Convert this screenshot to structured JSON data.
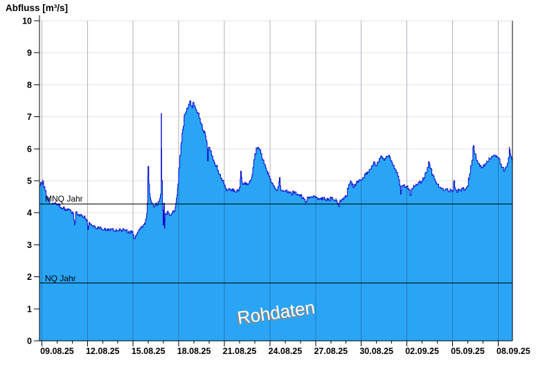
{
  "title": "Abfluss [m³/s]",
  "watermark": "Rohdaten",
  "reference_lines": [
    {
      "label": "MNQ Jahr",
      "value": 4.27
    },
    {
      "label": "NQ Jahr",
      "value": 1.81
    }
  ],
  "chart_data": {
    "type": "area",
    "title": "Abfluss [m³/s]",
    "ylabel": "Abfluss [m³/s]",
    "unit": "m³/s",
    "ylim": [
      0,
      10
    ],
    "y_ticks": [
      0,
      1,
      2,
      3,
      4,
      5,
      6,
      7,
      8,
      9,
      10
    ],
    "x_tick_labels": [
      "09.08.25",
      "12.08.25",
      "15.08.25",
      "18.08.25",
      "21.08.25",
      "24.08.25",
      "27.08.25",
      "30.08.25",
      "02.09.25",
      "05.09.25",
      "08.09.25"
    ],
    "x_tick_days": [
      0,
      3,
      6,
      9,
      12,
      15,
      18,
      21,
      24,
      27,
      30
    ],
    "xlim_days": [
      -0.16,
      30.93
    ],
    "grid": true,
    "legend": "none",
    "annotations": [
      "Rohdaten",
      "MNQ Jahr",
      "NQ Jahr"
    ],
    "reference_lines": [
      {
        "label": "MNQ Jahr",
        "value": 4.27
      },
      {
        "label": "NQ Jahr",
        "value": 1.81
      }
    ],
    "noise_amplitude": 0.06,
    "series": [
      {
        "name": "Abfluss Rohdaten",
        "points_day_value": [
          [
            -0.16,
            4.85
          ],
          [
            -0.08,
            4.95
          ],
          [
            0.0,
            4.9
          ],
          [
            0.06,
            5.02
          ],
          [
            0.12,
            4.8
          ],
          [
            0.2,
            4.7
          ],
          [
            0.28,
            4.5
          ],
          [
            0.36,
            4.42
          ],
          [
            0.5,
            4.35
          ],
          [
            0.7,
            4.3
          ],
          [
            0.9,
            4.28
          ],
          [
            1.1,
            4.22
          ],
          [
            1.3,
            4.15
          ],
          [
            1.5,
            4.12
          ],
          [
            1.7,
            4.08
          ],
          [
            1.9,
            4.05
          ],
          [
            2.05,
            3.98
          ],
          [
            2.15,
            3.62
          ],
          [
            2.22,
            4.0
          ],
          [
            2.4,
            3.95
          ],
          [
            2.6,
            3.92
          ],
          [
            2.8,
            3.9
          ],
          [
            2.95,
            3.78
          ],
          [
            3.02,
            3.48
          ],
          [
            3.1,
            3.7
          ],
          [
            3.25,
            3.62
          ],
          [
            3.45,
            3.58
          ],
          [
            3.65,
            3.52
          ],
          [
            3.9,
            3.5
          ],
          [
            4.1,
            3.48
          ],
          [
            4.3,
            3.45
          ],
          [
            4.5,
            3.5
          ],
          [
            4.7,
            3.46
          ],
          [
            4.9,
            3.44
          ],
          [
            5.1,
            3.5
          ],
          [
            5.3,
            3.46
          ],
          [
            5.5,
            3.44
          ],
          [
            5.7,
            3.42
          ],
          [
            5.9,
            3.38
          ],
          [
            6.05,
            3.22
          ],
          [
            6.15,
            3.28
          ],
          [
            6.3,
            3.4
          ],
          [
            6.45,
            3.5
          ],
          [
            6.6,
            3.55
          ],
          [
            6.75,
            3.65
          ],
          [
            6.87,
            3.85
          ],
          [
            6.93,
            4.3
          ],
          [
            6.98,
            5.45
          ],
          [
            7.03,
            5.0
          ],
          [
            7.08,
            4.6
          ],
          [
            7.15,
            4.4
          ],
          [
            7.25,
            4.3
          ],
          [
            7.35,
            4.18
          ],
          [
            7.45,
            4.28
          ],
          [
            7.55,
            4.22
          ],
          [
            7.65,
            4.35
          ],
          [
            7.75,
            4.45
          ],
          [
            7.82,
            4.6
          ],
          [
            7.85,
            7.1
          ],
          [
            7.88,
            5.0
          ],
          [
            7.93,
            4.3
          ],
          [
            7.97,
            3.62
          ],
          [
            8.02,
            4.3
          ],
          [
            8.06,
            3.52
          ],
          [
            8.12,
            3.98
          ],
          [
            8.2,
            3.95
          ],
          [
            8.3,
            4.05
          ],
          [
            8.4,
            3.92
          ],
          [
            8.5,
            3.95
          ],
          [
            8.6,
            4.0
          ],
          [
            8.7,
            4.05
          ],
          [
            8.8,
            4.3
          ],
          [
            8.88,
            4.55
          ],
          [
            8.94,
            4.9
          ],
          [
            9.0,
            5.4
          ],
          [
            9.08,
            5.8
          ],
          [
            9.16,
            6.2
          ],
          [
            9.25,
            6.6
          ],
          [
            9.35,
            7.0
          ],
          [
            9.45,
            7.15
          ],
          [
            9.55,
            7.25
          ],
          [
            9.65,
            7.4
          ],
          [
            9.72,
            7.5
          ],
          [
            9.8,
            7.35
          ],
          [
            9.87,
            7.28
          ],
          [
            9.93,
            7.45
          ],
          [
            10.0,
            7.35
          ],
          [
            10.08,
            7.28
          ],
          [
            10.16,
            7.2
          ],
          [
            10.25,
            7.1
          ],
          [
            10.35,
            6.95
          ],
          [
            10.45,
            6.8
          ],
          [
            10.55,
            6.65
          ],
          [
            10.65,
            6.55
          ],
          [
            10.75,
            6.4
          ],
          [
            10.85,
            6.2
          ],
          [
            10.9,
            5.62
          ],
          [
            10.96,
            6.05
          ],
          [
            11.05,
            5.95
          ],
          [
            11.15,
            5.82
          ],
          [
            11.25,
            5.65
          ],
          [
            11.35,
            5.55
          ],
          [
            11.45,
            5.45
          ],
          [
            11.55,
            5.32
          ],
          [
            11.65,
            5.2
          ],
          [
            11.75,
            5.1
          ],
          [
            11.85,
            5.02
          ],
          [
            11.95,
            4.92
          ],
          [
            12.05,
            4.82
          ],
          [
            12.15,
            4.72
          ],
          [
            12.3,
            4.75
          ],
          [
            12.45,
            4.68
          ],
          [
            12.6,
            4.72
          ],
          [
            12.75,
            4.65
          ],
          [
            12.9,
            4.68
          ],
          [
            13.0,
            4.8
          ],
          [
            13.07,
            5.3
          ],
          [
            13.15,
            4.95
          ],
          [
            13.25,
            4.92
          ],
          [
            13.4,
            4.88
          ],
          [
            13.55,
            4.9
          ],
          [
            13.7,
            5.0
          ],
          [
            13.82,
            5.2
          ],
          [
            13.92,
            5.55
          ],
          [
            14.0,
            5.85
          ],
          [
            14.1,
            6.0
          ],
          [
            14.2,
            6.05
          ],
          [
            14.3,
            6.0
          ],
          [
            14.4,
            5.85
          ],
          [
            14.5,
            5.65
          ],
          [
            14.6,
            5.55
          ],
          [
            14.72,
            5.4
          ],
          [
            14.85,
            5.25
          ],
          [
            14.95,
            5.15
          ],
          [
            15.05,
            5.0
          ],
          [
            15.2,
            4.88
          ],
          [
            15.35,
            4.78
          ],
          [
            15.5,
            4.72
          ],
          [
            15.62,
            5.1
          ],
          [
            15.7,
            4.72
          ],
          [
            15.85,
            4.7
          ],
          [
            16.0,
            4.68
          ],
          [
            16.2,
            4.62
          ],
          [
            16.4,
            4.6
          ],
          [
            16.6,
            4.65
          ],
          [
            16.8,
            4.58
          ],
          [
            17.0,
            4.52
          ],
          [
            17.2,
            4.45
          ],
          [
            17.32,
            4.32
          ],
          [
            17.45,
            4.5
          ],
          [
            17.6,
            4.45
          ],
          [
            17.8,
            4.48
          ],
          [
            18.0,
            4.5
          ],
          [
            18.2,
            4.45
          ],
          [
            18.4,
            4.48
          ],
          [
            18.6,
            4.42
          ],
          [
            18.8,
            4.4
          ],
          [
            19.0,
            4.45
          ],
          [
            19.2,
            4.4
          ],
          [
            19.35,
            4.38
          ],
          [
            19.5,
            4.2
          ],
          [
            19.6,
            4.4
          ],
          [
            19.8,
            4.42
          ],
          [
            20.0,
            4.5
          ],
          [
            20.1,
            4.75
          ],
          [
            20.2,
            4.88
          ],
          [
            20.28,
            5.0
          ],
          [
            20.38,
            4.85
          ],
          [
            20.5,
            4.8
          ],
          [
            20.65,
            4.92
          ],
          [
            20.8,
            4.98
          ],
          [
            20.95,
            5.02
          ],
          [
            21.1,
            5.1
          ],
          [
            21.25,
            5.2
          ],
          [
            21.4,
            5.28
          ],
          [
            21.55,
            5.35
          ],
          [
            21.68,
            5.45
          ],
          [
            21.8,
            5.55
          ],
          [
            21.92,
            5.48
          ],
          [
            22.05,
            5.58
          ],
          [
            22.18,
            5.68
          ],
          [
            22.3,
            5.78
          ],
          [
            22.42,
            5.7
          ],
          [
            22.55,
            5.68
          ],
          [
            22.68,
            5.75
          ],
          [
            22.8,
            5.8
          ],
          [
            22.92,
            5.65
          ],
          [
            23.05,
            5.5
          ],
          [
            23.18,
            5.38
          ],
          [
            23.3,
            5.25
          ],
          [
            23.42,
            5.15
          ],
          [
            23.52,
            4.88
          ],
          [
            23.58,
            4.58
          ],
          [
            23.65,
            4.85
          ],
          [
            23.8,
            4.88
          ],
          [
            23.95,
            4.82
          ],
          [
            24.1,
            4.75
          ],
          [
            24.22,
            4.56
          ],
          [
            24.32,
            4.75
          ],
          [
            24.45,
            4.82
          ],
          [
            24.6,
            4.88
          ],
          [
            24.75,
            4.95
          ],
          [
            24.9,
            4.92
          ],
          [
            25.05,
            5.05
          ],
          [
            25.2,
            5.25
          ],
          [
            25.35,
            5.42
          ],
          [
            25.42,
            5.58
          ],
          [
            25.52,
            5.4
          ],
          [
            25.65,
            5.2
          ],
          [
            25.8,
            5.05
          ],
          [
            25.95,
            4.9
          ],
          [
            26.1,
            4.8
          ],
          [
            26.25,
            4.75
          ],
          [
            26.4,
            4.7
          ],
          [
            26.55,
            4.75
          ],
          [
            26.7,
            4.68
          ],
          [
            26.85,
            4.72
          ],
          [
            27.0,
            4.68
          ],
          [
            27.08,
            5.0
          ],
          [
            27.18,
            4.72
          ],
          [
            27.35,
            4.68
          ],
          [
            27.5,
            4.72
          ],
          [
            27.65,
            4.75
          ],
          [
            27.8,
            4.7
          ],
          [
            27.92,
            4.8
          ],
          [
            28.05,
            5.05
          ],
          [
            28.18,
            5.4
          ],
          [
            28.28,
            5.65
          ],
          [
            28.36,
            6.1
          ],
          [
            28.44,
            5.85
          ],
          [
            28.54,
            5.72
          ],
          [
            28.66,
            5.55
          ],
          [
            28.78,
            5.45
          ],
          [
            28.9,
            5.4
          ],
          [
            29.0,
            5.45
          ],
          [
            29.12,
            5.52
          ],
          [
            29.25,
            5.6
          ],
          [
            29.4,
            5.68
          ],
          [
            29.55,
            5.75
          ],
          [
            29.7,
            5.8
          ],
          [
            29.85,
            5.78
          ],
          [
            30.0,
            5.72
          ],
          [
            30.12,
            5.55
          ],
          [
            30.24,
            5.42
          ],
          [
            30.36,
            5.3
          ],
          [
            30.48,
            5.42
          ],
          [
            30.6,
            5.55
          ],
          [
            30.68,
            5.72
          ],
          [
            30.73,
            6.05
          ],
          [
            30.79,
            5.85
          ],
          [
            30.86,
            5.72
          ],
          [
            30.93,
            5.58
          ]
        ]
      }
    ],
    "colors": {
      "area_fill": "#2AA5F5",
      "area_stroke": "#0909CE",
      "h_grid": "#E2E2E2",
      "v_grid_overlay": "rgba(20,35,70,0.35)",
      "axis": "#000000",
      "reference_line": "#000000",
      "text": "#000000",
      "background": "#FFFFFF"
    }
  }
}
